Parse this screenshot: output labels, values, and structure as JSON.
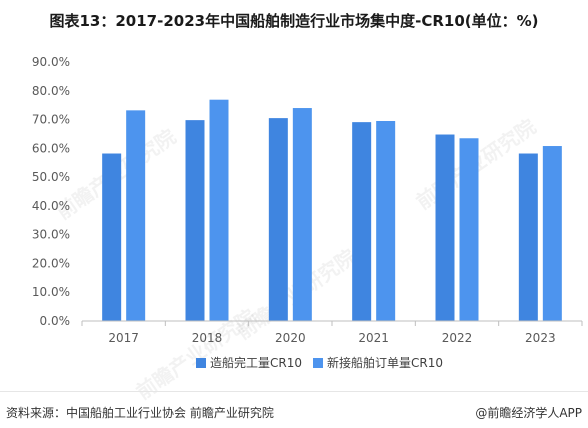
{
  "title": "图表13：2017-2023年中国船舶制造行业市场集中度-CR10(单位：%)",
  "footer": {
    "source": "资料来源：中国船舶工业行业协会 前瞻产业研究院",
    "brand": "@前瞻经济学人APP"
  },
  "watermark": "前瞻产业研究院",
  "colors": {
    "series1": "#3f85e0",
    "series2": "#4d94ee",
    "axis": "#bfbfbf",
    "text": "#595959"
  },
  "chart_data": {
    "type": "bar",
    "categories": [
      "2017",
      "2018",
      "2020",
      "2021",
      "2022",
      "2023"
    ],
    "series": [
      {
        "name": "造船完工量CR10",
        "values": [
          58.2,
          69.8,
          70.5,
          69.1,
          64.8,
          58.2
        ]
      },
      {
        "name": "新接船舶订单量CR10",
        "values": [
          73.2,
          76.9,
          74.0,
          69.5,
          63.5,
          60.8
        ]
      }
    ],
    "ylim": [
      0,
      90
    ],
    "ytick_labels": [
      "0.0%",
      "10.0%",
      "20.0%",
      "30.0%",
      "40.0%",
      "50.0%",
      "60.0%",
      "70.0%",
      "80.0%",
      "90.0%"
    ],
    "legend_position": "bottom",
    "grid": false
  }
}
